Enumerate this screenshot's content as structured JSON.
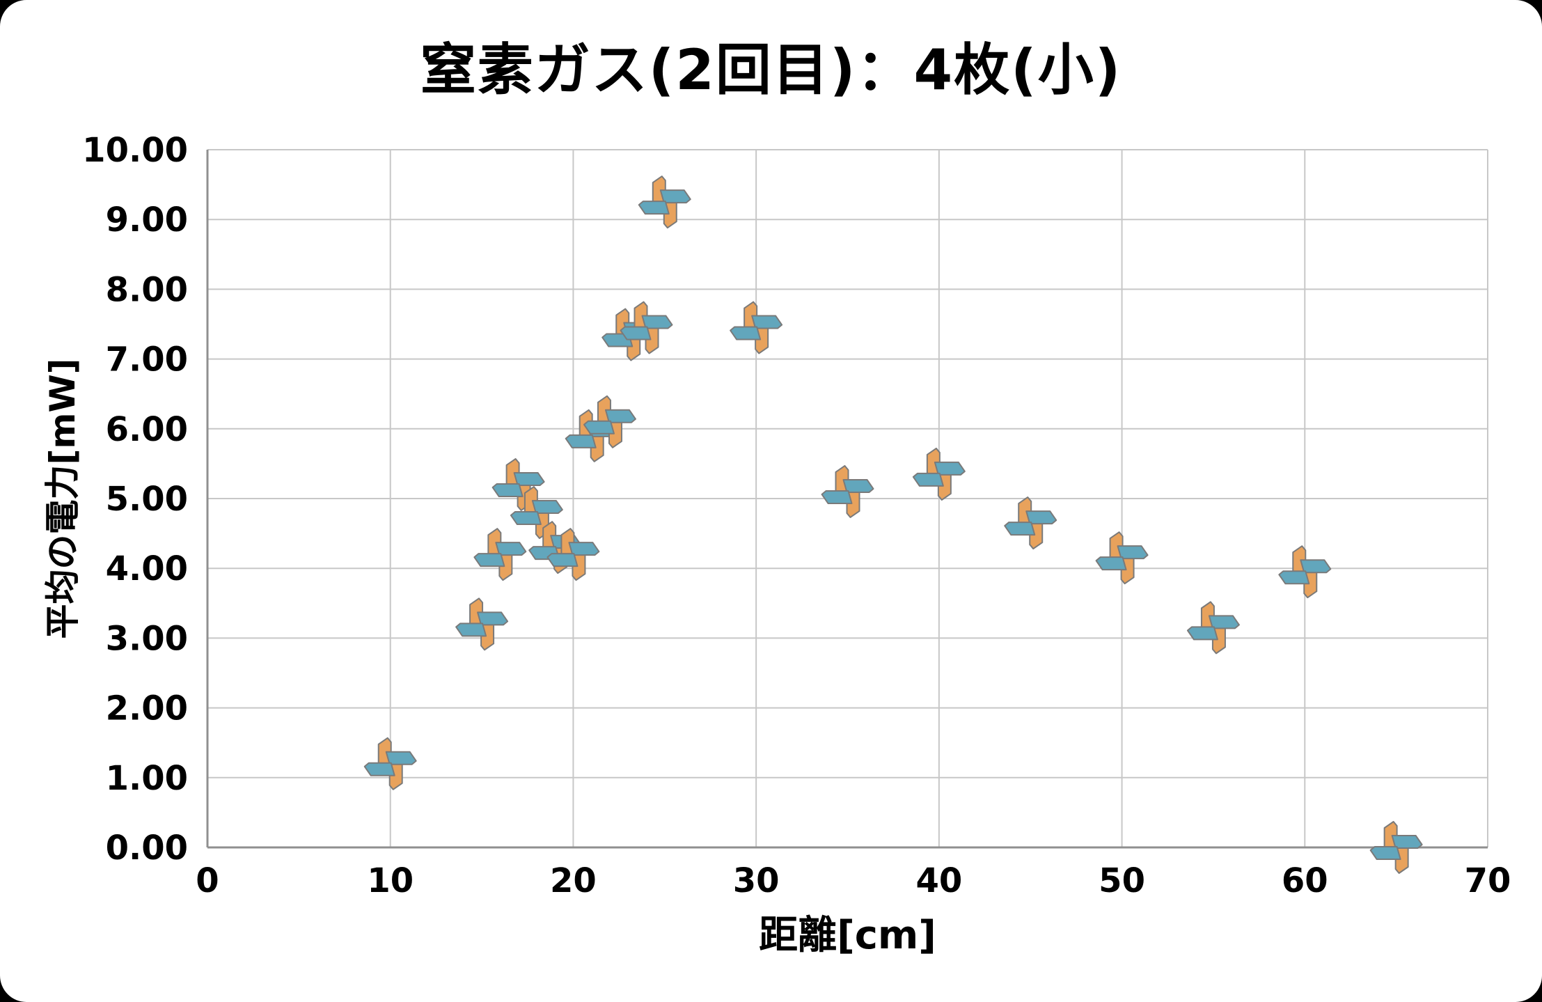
{
  "title": "窒素ガス(2回目)：4枚(小)",
  "chart_data": {
    "type": "scatter",
    "title": "窒素ガス(2回目)：4枚(小)",
    "xlabel": "距離[cm]",
    "ylabel": "平均の電力[mW]",
    "xlim": [
      0,
      70
    ],
    "ylim": [
      0,
      10
    ],
    "x_ticks": [
      0,
      10,
      20,
      30,
      40,
      50,
      60,
      70
    ],
    "y_ticks": [
      0,
      1,
      2,
      3,
      4,
      5,
      6,
      7,
      8,
      9,
      10
    ],
    "y_tick_decimals": 2,
    "grid": true,
    "legend": "none",
    "marker": "pinwheel",
    "colors": {
      "marker_orange": "#E8A25C",
      "marker_blue": "#62A6BC",
      "marker_outline": "#7A7A7A",
      "gridline": "#C7C7C7",
      "axis_line": "#8F8F8F",
      "text": "#000000"
    },
    "points": [
      {
        "x": 10,
        "y": 1.2
      },
      {
        "x": 15,
        "y": 3.2
      },
      {
        "x": 16,
        "y": 4.2
      },
      {
        "x": 17,
        "y": 5.2
      },
      {
        "x": 18,
        "y": 4.8
      },
      {
        "x": 19,
        "y": 4.3
      },
      {
        "x": 20,
        "y": 4.2
      },
      {
        "x": 21,
        "y": 5.9
      },
      {
        "x": 22,
        "y": 6.1
      },
      {
        "x": 23,
        "y": 7.35
      },
      {
        "x": 24,
        "y": 7.45
      },
      {
        "x": 25,
        "y": 9.25
      },
      {
        "x": 30,
        "y": 7.45
      },
      {
        "x": 35,
        "y": 5.1
      },
      {
        "x": 40,
        "y": 5.35
      },
      {
        "x": 45,
        "y": 4.65
      },
      {
        "x": 50,
        "y": 4.15
      },
      {
        "x": 55,
        "y": 3.15
      },
      {
        "x": 60,
        "y": 3.95
      },
      {
        "x": 65,
        "y": 0.0
      }
    ]
  }
}
